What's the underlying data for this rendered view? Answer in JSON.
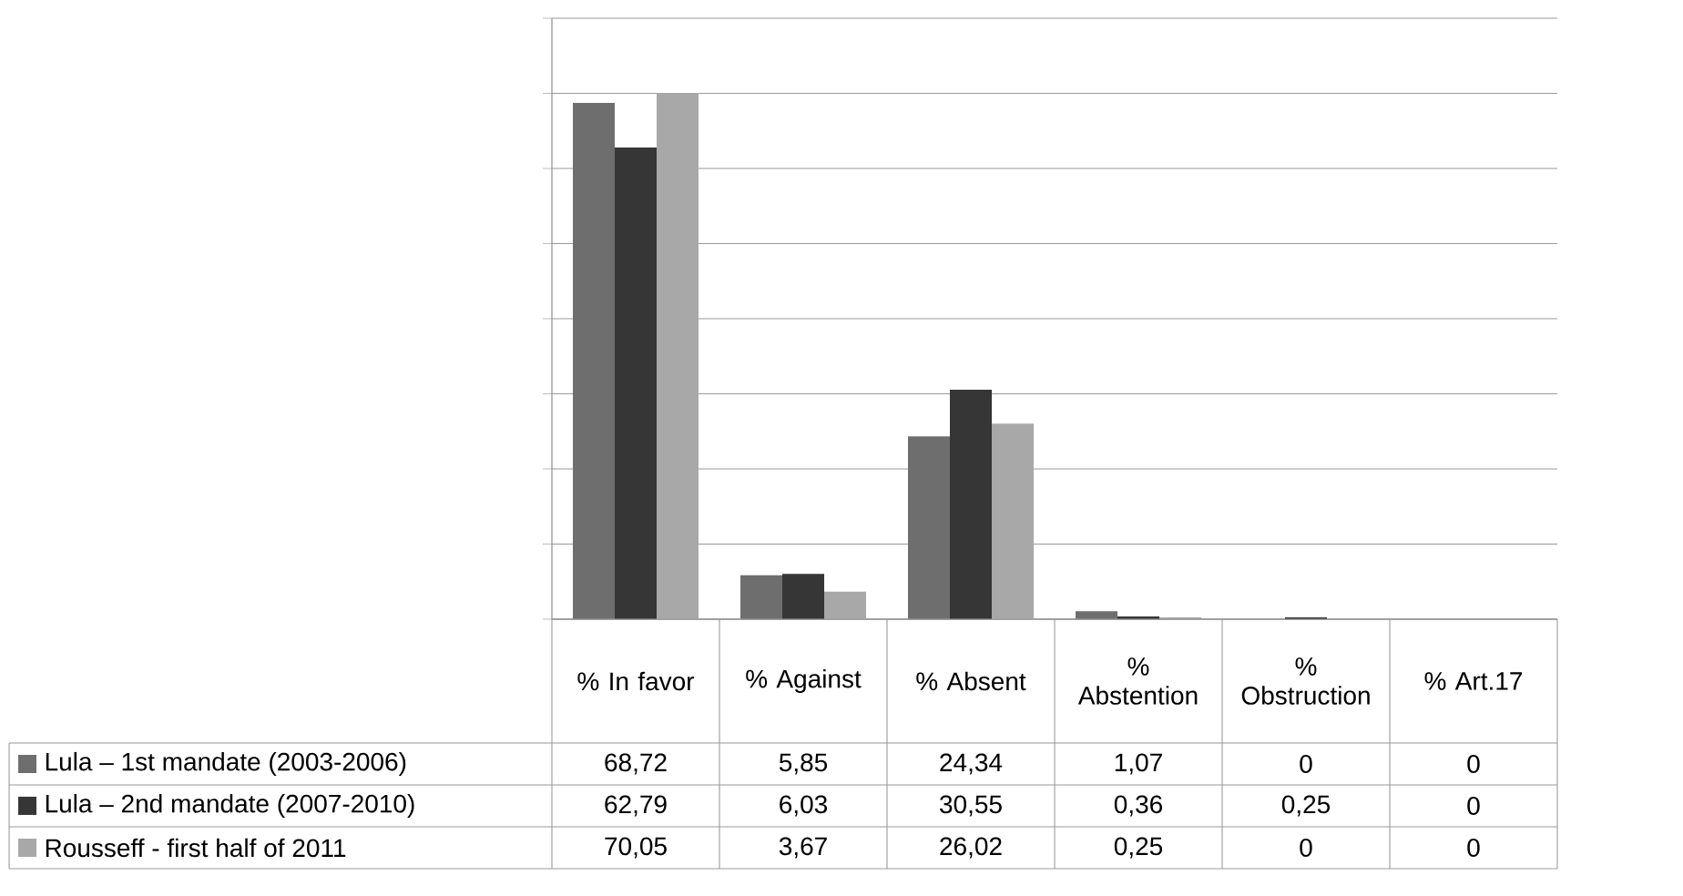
{
  "chart_data": {
    "type": "bar",
    "categories": [
      "% In favor",
      "% Against",
      "% Absent",
      "% Abstention",
      "% Obstruction",
      "% Art.17"
    ],
    "series": [
      {
        "name": "Lula – 1st mandate (2003-2006)",
        "color": "#6e6e6e",
        "values": [
          68.72,
          5.85,
          24.34,
          1.07,
          0,
          0
        ],
        "value_labels": [
          "68,72",
          "5,85",
          "24,34",
          "1,07",
          "0",
          "0"
        ]
      },
      {
        "name": "Lula – 2nd mandate (2007-2010)",
        "color": "#363636",
        "values": [
          62.79,
          6.03,
          30.55,
          0.36,
          0.25,
          0
        ],
        "value_labels": [
          "62,79",
          "6,03",
          "30,55",
          "0,36",
          "0,25",
          "0"
        ]
      },
      {
        "name": "Rousseff - first half of 2011",
        "color": "#a8a8a8",
        "values": [
          70.05,
          3.67,
          26.02,
          0.25,
          0,
          0
        ],
        "value_labels": [
          "70,05",
          "3,67",
          "26,02",
          "0,25",
          "0",
          "0"
        ]
      }
    ],
    "ylim": [
      0,
      80
    ],
    "yticks": [
      {
        "value": 0,
        "label": null
      },
      {
        "value": 10,
        "label": null
      },
      {
        "value": 20,
        "label": null
      },
      {
        "value": 30,
        "label": null
      },
      {
        "value": 40,
        "label": null
      },
      {
        "value": 50,
        "label": null
      },
      {
        "value": 60,
        "label": null
      },
      {
        "value": 70,
        "label": null
      },
      {
        "value": 80,
        "label": null
      }
    ],
    "grid": "y",
    "legend": "bottom left"
  }
}
